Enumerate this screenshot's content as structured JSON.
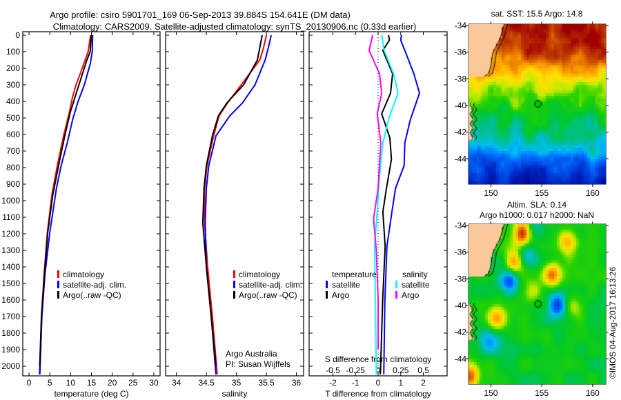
{
  "header": {
    "title_line1": "Argo profile: csiro 5901701_169 06-Sep-2013 39.884S 154.641E (DM data)",
    "title_line2": "Climatology: CARS2009. Satellite-adjusted climatology: synTS_20130906.nc (0.33d earlier)"
  },
  "timestamp": "©IMOS 04-Aug-2017 16:13:26",
  "chart_data": [
    {
      "id": "temperature",
      "type": "line",
      "xlabel": "temperature (deg C)",
      "ylabel": "depth",
      "xlim": [
        -1.5,
        31.5
      ],
      "ylim": [
        2050,
        0
      ],
      "xticks": [
        0,
        5,
        10,
        15,
        20,
        25,
        30
      ],
      "yticks": [
        0,
        100,
        200,
        300,
        400,
        500,
        600,
        700,
        800,
        900,
        1000,
        1100,
        1200,
        1300,
        1400,
        1500,
        1600,
        1700,
        1800,
        1900,
        2000
      ],
      "legend": [
        "climatology",
        "satellite-adj. clim.",
        "Argo(..raw -QC)"
      ],
      "legend_placement": "lower-center",
      "series": [
        {
          "name": "climatology",
          "color": "#ff0000",
          "points": [
            [
              14.8,
              0
            ],
            [
              14.5,
              50
            ],
            [
              14.2,
              100
            ],
            [
              13.5,
              150
            ],
            [
              12.5,
              220
            ],
            [
              11.3,
              300
            ],
            [
              10.4,
              380
            ],
            [
              9.7,
              467
            ],
            [
              8.3,
              608
            ],
            [
              6.8,
              788
            ],
            [
              5.5,
              967
            ],
            [
              4.4,
              1192
            ],
            [
              3.6,
              1450
            ],
            [
              3.0,
              1700
            ],
            [
              2.5,
              2050
            ]
          ]
        },
        {
          "name": "satellite-adj. clim.",
          "color": "#0000ff",
          "points": [
            [
              15.3,
              0
            ],
            [
              15.2,
              100
            ],
            [
              14.7,
              175
            ],
            [
              13.3,
              300
            ],
            [
              11.8,
              400
            ],
            [
              10.5,
              508
            ],
            [
              9.2,
              650
            ],
            [
              7.7,
              790
            ],
            [
              6.6,
              925
            ],
            [
              5.0,
              1192
            ],
            [
              3.8,
              1450
            ],
            [
              3.1,
              1700
            ],
            [
              2.6,
              2050
            ]
          ]
        },
        {
          "name": "Argo(..raw -QC)",
          "color": "#000000",
          "points": [
            [
              15.0,
              0
            ],
            [
              14.7,
              100
            ],
            [
              13.9,
              150
            ],
            [
              12.0,
              300
            ],
            [
              9.9,
              467
            ],
            [
              8.6,
              608
            ],
            [
              7.1,
              788
            ],
            [
              5.7,
              967
            ],
            [
              4.5,
              1192
            ],
            [
              3.7,
              1450
            ],
            [
              3.0,
              1700
            ],
            [
              2.6,
              2000
            ]
          ]
        }
      ]
    },
    {
      "id": "salinity",
      "type": "line",
      "xlabel": "salinity",
      "xlim": [
        33.82,
        36.12
      ],
      "ylim": [
        2050,
        0
      ],
      "xticks": [
        "34",
        "34.5",
        "35",
        "35.5",
        "36"
      ],
      "legend": [
        "climatology",
        "satellite-adj. clim.",
        "Argo(..raw -QC)"
      ],
      "legend_placement": "lower-center",
      "annotations": [
        "Argo Australia",
        "PI: Susan Wijffels"
      ],
      "series": [
        {
          "name": "climatology",
          "color": "#ff0000",
          "points": [
            [
              35.5,
              0
            ],
            [
              35.45,
              80
            ],
            [
              35.39,
              150
            ],
            [
              35.08,
              300
            ],
            [
              34.85,
              410
            ],
            [
              34.71,
              488
            ],
            [
              34.62,
              608
            ],
            [
              34.51,
              788
            ],
            [
              34.47,
              925
            ],
            [
              34.47,
              1133
            ],
            [
              34.52,
              1400
            ],
            [
              34.6,
              1700
            ],
            [
              34.68,
              2050
            ]
          ]
        },
        {
          "name": "satellite-adj. clim.",
          "color": "#0000ff",
          "points": [
            [
              35.58,
              0
            ],
            [
              35.55,
              50
            ],
            [
              35.48,
              150
            ],
            [
              35.31,
              300
            ],
            [
              35.1,
              410
            ],
            [
              34.89,
              488
            ],
            [
              34.66,
              608
            ],
            [
              34.54,
              788
            ],
            [
              34.5,
              925
            ],
            [
              34.48,
              1133
            ],
            [
              34.5,
              1400
            ],
            [
              34.58,
              1700
            ],
            [
              34.66,
              2050
            ]
          ]
        },
        {
          "name": "Argo(..raw -QC)",
          "color": "#000000",
          "points": [
            [
              35.43,
              0
            ],
            [
              35.35,
              150
            ],
            [
              35.12,
              300
            ],
            [
              34.84,
              410
            ],
            [
              34.7,
              488
            ],
            [
              34.6,
              608
            ],
            [
              34.5,
              788
            ],
            [
              34.46,
              925
            ],
            [
              34.44,
              1133
            ],
            [
              34.5,
              1400
            ],
            [
              34.58,
              1700
            ],
            [
              34.66,
              2000
            ]
          ]
        }
      ]
    },
    {
      "id": "difference",
      "type": "line",
      "xlabel": "T difference from climatology",
      "xlabel2": "S difference from climatology",
      "xlim": [
        -3.05,
        3.05
      ],
      "xlim_S": [
        -0.7625,
        0.7625
      ],
      "ylim": [
        2050,
        0
      ],
      "xticks": [
        "-2",
        "-1",
        "0",
        "1",
        "2"
      ],
      "xticks_S": [
        "-0.5",
        "-0.25",
        "0",
        "0.25",
        "0.5"
      ],
      "legend_headers": [
        "temperature",
        "salinity"
      ],
      "legend": [
        "satellite",
        "Argo",
        "satellite",
        "Argo"
      ],
      "series": [
        {
          "name": "temperature satellite",
          "axis": "T",
          "color": "#0000ff",
          "points": [
            [
              1.03,
              0
            ],
            [
              1.0,
              30
            ],
            [
              1.18,
              92
            ],
            [
              1.58,
              233
            ],
            [
              1.83,
              350
            ],
            [
              1.43,
              508
            ],
            [
              1.18,
              650
            ],
            [
              1.15,
              788
            ],
            [
              0.77,
              925
            ],
            [
              0.61,
              1067
            ],
            [
              0.39,
              1275
            ],
            [
              0.3,
              1600
            ],
            [
              0.25,
              2050
            ]
          ]
        },
        {
          "name": "temperature Argo",
          "axis": "T",
          "color": "#000000",
          "points": [
            [
              0.46,
              0
            ],
            [
              0.5,
              30
            ],
            [
              0.21,
              92
            ],
            [
              0.64,
              233
            ],
            [
              0.55,
              350
            ],
            [
              0.16,
              475
            ],
            [
              0.52,
              621
            ],
            [
              0.59,
              750
            ],
            [
              0.37,
              925
            ],
            [
              0.21,
              1067
            ],
            [
              0.31,
              1275
            ],
            [
              0.2,
              1600
            ],
            [
              0.1,
              2050
            ]
          ]
        },
        {
          "name": "salinity satellite",
          "axis": "S",
          "color": "#00ffff",
          "points": [
            [
              0.04,
              0
            ],
            [
              0.066,
              92
            ],
            [
              0.17,
              233
            ],
            [
              0.22,
              350
            ],
            [
              0.115,
              508
            ],
            [
              0.053,
              650
            ],
            [
              0.015,
              850
            ],
            [
              -0.01,
              1067
            ],
            [
              -0.04,
              1275
            ],
            [
              -0.03,
              1600
            ],
            [
              -0.02,
              2050
            ]
          ]
        },
        {
          "name": "salinity Argo",
          "axis": "S",
          "color": "#ff00ff",
          "points": [
            [
              -0.06,
              0
            ],
            [
              -0.1,
              92
            ],
            [
              0.015,
              233
            ],
            [
              0.04,
              350
            ],
            [
              -0.01,
              475
            ],
            [
              0.03,
              650
            ],
            [
              0.0,
              925
            ],
            [
              -0.05,
              1110
            ],
            [
              -0.02,
              1300
            ],
            [
              0.0,
              1600
            ],
            [
              0.0,
              1900
            ]
          ]
        }
      ]
    },
    {
      "id": "sst-map",
      "type": "heatmap",
      "title": "sat. SST: 15.5 Argo: 14.8",
      "lonlim": [
        147.8,
        161.3
      ],
      "latlim": [
        -45.9,
        -33.9
      ],
      "xticks": [
        "150",
        "155",
        "160"
      ],
      "yticks": [
        "-34",
        "-36",
        "-38",
        "-40",
        "-42",
        "-44"
      ],
      "argo_position": [
        154.641,
        -39.884
      ]
    },
    {
      "id": "sla-map",
      "type": "heatmap",
      "title": "Altim. SLA: 0.14",
      "subtitle": "Argo h1000: 0.017 h2000: NaN",
      "lonlim": [
        147.8,
        161.3
      ],
      "latlim": [
        -45.9,
        -33.9
      ],
      "xticks": [
        "150",
        "155",
        "160"
      ],
      "yticks": [
        "-34",
        "-36",
        "-38",
        "-40",
        "-42",
        "-44"
      ],
      "argo_position": [
        154.641,
        -39.884
      ],
      "features": [
        [
          153.1,
          -34.6,
          0.45
        ],
        [
          157.5,
          -35.2,
          0.28
        ],
        [
          152.3,
          -36.8,
          0.3
        ],
        [
          156.1,
          -37.7,
          0.35
        ],
        [
          150.6,
          -41.0,
          0.3
        ],
        [
          148.0,
          -45.3,
          0.35
        ],
        [
          154.0,
          -39.0,
          0.14
        ],
        [
          158.2,
          -40.2,
          0.12
        ],
        [
          151.7,
          -38.2,
          -0.32
        ],
        [
          156.5,
          -40.0,
          -0.32
        ],
        [
          149.9,
          -42.5,
          -0.26
        ],
        [
          153.5,
          -36.0,
          -0.2
        ],
        [
          154.2,
          -34.2,
          -0.15
        ]
      ]
    }
  ]
}
